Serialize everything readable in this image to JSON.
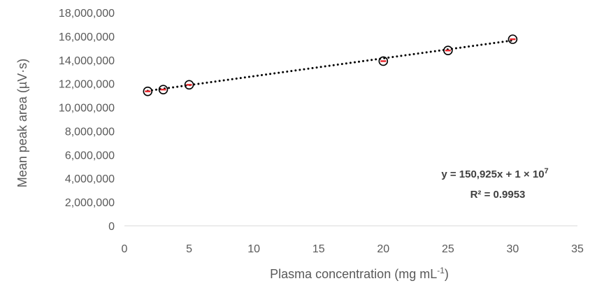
{
  "chart_data": {
    "type": "scatter",
    "xlabel": "Plasma concentration (mg mL",
    "xlabel_sup": "-1",
    "xlabel_end": ")",
    "ylabel": "Mean peak area (µV·s)",
    "xlim": [
      0,
      35
    ],
    "ylim": [
      0,
      18000000
    ],
    "x_ticks": [
      0,
      5,
      10,
      15,
      20,
      25,
      30,
      35
    ],
    "y_ticks": [
      0,
      2000000,
      4000000,
      6000000,
      8000000,
      10000000,
      12000000,
      14000000,
      16000000,
      18000000
    ],
    "x_tick_labels": [
      "0",
      "5",
      "10",
      "15",
      "20",
      "25",
      "30",
      "35"
    ],
    "y_tick_labels": [
      "0",
      "2,000,000",
      "4,000,000",
      "6,000,000",
      "8,000,000",
      "10,000,000",
      "12,000,000",
      "14,000,000",
      "16,000,000",
      "18,000,000"
    ],
    "grid": false,
    "series": [
      {
        "x": [
          1.8,
          3,
          5,
          20,
          25,
          30
        ],
        "y": [
          11350000,
          11500000,
          11900000,
          13900000,
          14800000,
          15750000
        ],
        "marker": "open-circle",
        "marker_color": "#000000",
        "error_bar_color": "#e8262b"
      }
    ],
    "trendline": {
      "style": "dotted",
      "color": "#000000",
      "x_range": [
        1.8,
        30
      ],
      "slope": 150925,
      "intercept": 11120000
    },
    "annotation": {
      "line1": "y = 150,925x + 1 × 10",
      "line1_sup": "7",
      "line2": "R² = 0.9953"
    }
  }
}
